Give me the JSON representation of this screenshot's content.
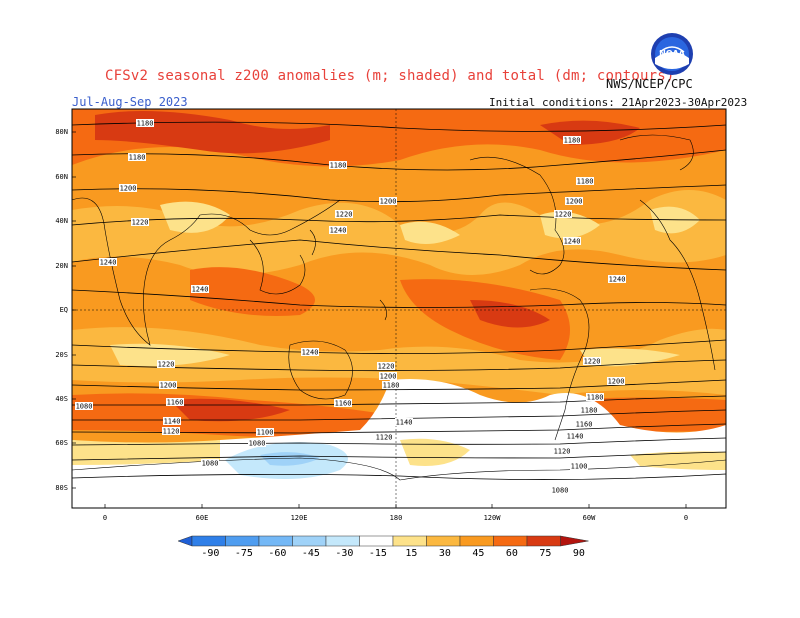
{
  "header": {
    "title": "CFSv2 seasonal z200 anomalies (m; shaded) and total (dm; contours)",
    "agency": "NWS/NCEP/CPC",
    "period": "Jul-Aug-Sep 2023",
    "initial_conditions": "Initial conditions: 21Apr2023-30Apr2023",
    "logo_text": "NOAA"
  },
  "axes": {
    "lat_labels": [
      "80N",
      "60N",
      "40N",
      "20N",
      "EQ",
      "20S",
      "40S",
      "60S",
      "80S"
    ],
    "lon_labels": [
      "0",
      "60E",
      "120E",
      "180",
      "120W",
      "60W",
      "0"
    ]
  },
  "contour_labels": [
    {
      "text": "1180"
    },
    {
      "text": "1180"
    },
    {
      "text": "1200"
    },
    {
      "text": "1220"
    },
    {
      "text": "1240"
    },
    {
      "text": "1240"
    },
    {
      "text": "1180"
    },
    {
      "text": "1220"
    },
    {
      "text": "1240"
    },
    {
      "text": "1200"
    },
    {
      "text": "1180"
    },
    {
      "text": "1180"
    },
    {
      "text": "1200"
    },
    {
      "text": "1220"
    },
    {
      "text": "1240"
    },
    {
      "text": "1240"
    },
    {
      "text": "1240"
    },
    {
      "text": "1220"
    },
    {
      "text": "1200"
    },
    {
      "text": "1180"
    },
    {
      "text": "1220"
    },
    {
      "text": "1200"
    },
    {
      "text": "1180"
    },
    {
      "text": "1160"
    },
    {
      "text": "1140"
    },
    {
      "text": "1120"
    },
    {
      "text": "1100"
    },
    {
      "text": "1080"
    },
    {
      "text": "1080"
    },
    {
      "text": "1160"
    },
    {
      "text": "1140"
    },
    {
      "text": "1120"
    },
    {
      "text": "1220"
    },
    {
      "text": "1200"
    },
    {
      "text": "1180"
    },
    {
      "text": "1180"
    },
    {
      "text": "1160"
    },
    {
      "text": "1140"
    },
    {
      "text": "1120"
    },
    {
      "text": "1100"
    },
    {
      "text": "1080"
    },
    {
      "text": "1080"
    }
  ],
  "legend": {
    "colors": [
      "#1e5fd6",
      "#2f7fe8",
      "#4f9df0",
      "#74b8f6",
      "#9fd2f8",
      "#c4e8fb",
      "#ffffff",
      "#fde28a",
      "#fbb840",
      "#f99a20",
      "#f56a12",
      "#d83a12",
      "#b3140e"
    ],
    "labels": [
      "-90",
      "-75",
      "-60",
      "-45",
      "-30",
      "-15",
      "15",
      "30",
      "45",
      "60",
      "75",
      "90"
    ]
  }
}
